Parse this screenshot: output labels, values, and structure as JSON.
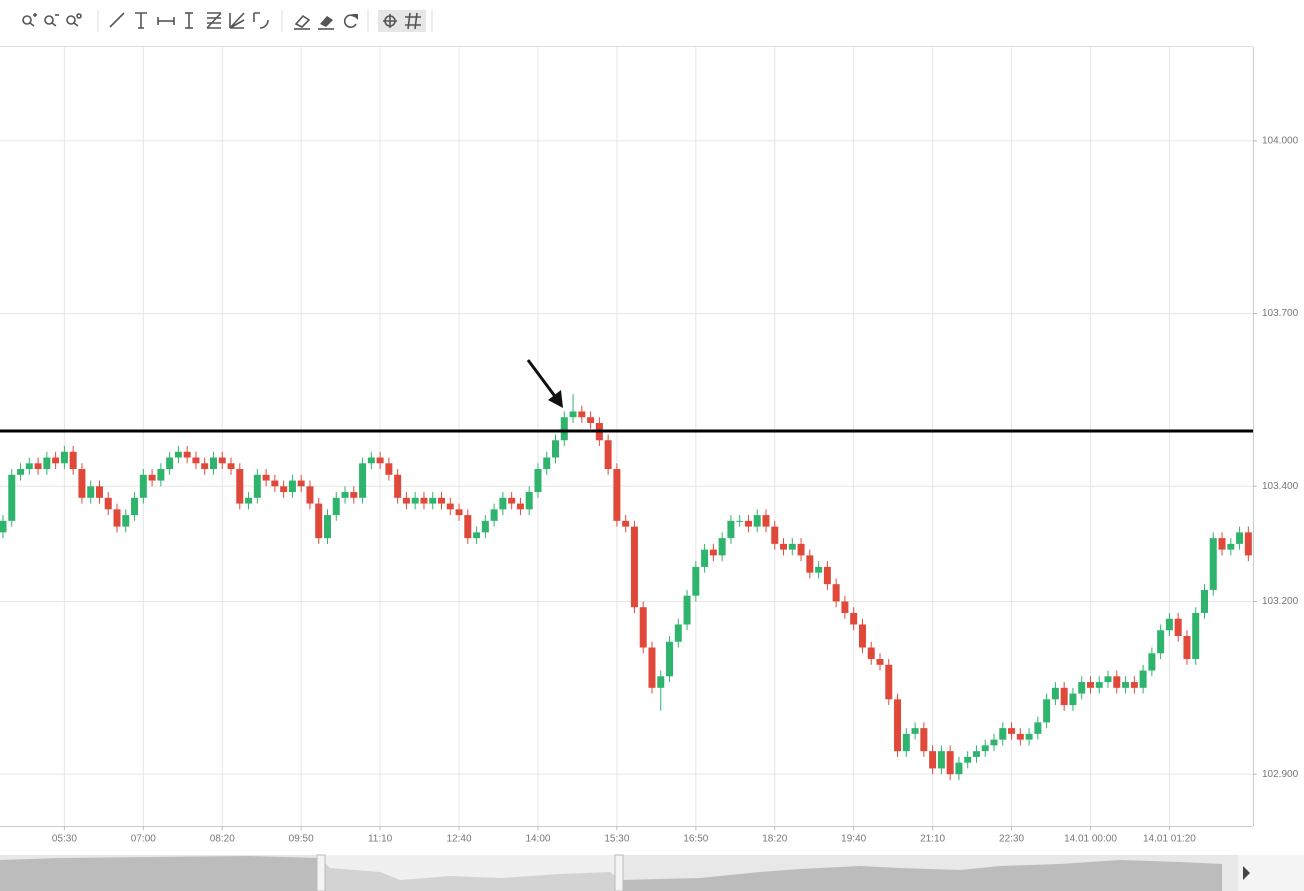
{
  "chart_data": {
    "type": "candlestick",
    "categories": [
      null,
      null,
      null,
      null,
      null,
      null,
      null,
      "05:30",
      null,
      null,
      null,
      null,
      null,
      null,
      null,
      null,
      "07:00",
      null,
      null,
      null,
      null,
      null,
      null,
      null,
      null,
      "08:20",
      null,
      null,
      null,
      null,
      null,
      null,
      null,
      null,
      "09:50",
      null,
      null,
      null,
      null,
      null,
      null,
      null,
      null,
      "11:10",
      null,
      null,
      null,
      null,
      null,
      null,
      null,
      null,
      "12:40",
      null,
      null,
      null,
      null,
      null,
      null,
      null,
      null,
      "14:00",
      null,
      null,
      null,
      null,
      null,
      null,
      null,
      null,
      "15:30",
      null,
      null,
      null,
      null,
      null,
      null,
      null,
      null,
      "16:50",
      null,
      null,
      null,
      null,
      null,
      null,
      null,
      null,
      "18:20",
      null,
      null,
      null,
      null,
      null,
      null,
      null,
      null,
      "19:40",
      null,
      null,
      null,
      null,
      null,
      null,
      null,
      null,
      "21:10",
      null,
      null,
      null,
      null,
      null,
      null,
      null,
      null,
      "22:30",
      null,
      null,
      null,
      null,
      null,
      null,
      null,
      null,
      "14.01 00:00",
      null,
      null,
      null,
      null,
      null,
      null,
      null,
      null,
      "14.01 01:20",
      null,
      null,
      null,
      null,
      null,
      null,
      null,
      null,
      null
    ],
    "open": [
      103.32,
      103.34,
      103.42,
      103.43,
      103.44,
      103.43,
      103.45,
      103.44,
      103.46,
      103.43,
      103.38,
      103.4,
      103.38,
      103.36,
      103.33,
      103.35,
      103.38,
      103.42,
      103.41,
      103.43,
      103.45,
      103.46,
      103.45,
      103.44,
      103.43,
      103.45,
      103.44,
      103.43,
      103.37,
      103.38,
      103.42,
      103.41,
      103.4,
      103.39,
      103.41,
      103.4,
      103.37,
      103.31,
      103.35,
      103.38,
      103.39,
      103.38,
      103.44,
      103.45,
      103.44,
      103.42,
      103.38,
      103.37,
      103.38,
      103.37,
      103.38,
      103.37,
      103.36,
      103.35,
      103.31,
      103.32,
      103.34,
      103.36,
      103.38,
      103.37,
      103.36,
      103.39,
      103.43,
      103.45,
      103.48,
      103.52,
      103.53,
      103.52,
      103.51,
      103.48,
      103.43,
      103.34,
      103.33,
      103.19,
      103.12,
      103.05,
      103.07,
      103.13,
      103.16,
      103.21,
      103.26,
      103.29,
      103.28,
      103.31,
      103.34,
      103.34,
      103.33,
      103.35,
      103.33,
      103.3,
      103.29,
      103.3,
      103.28,
      103.25,
      103.26,
      103.23,
      103.2,
      103.18,
      103.16,
      103.12,
      103.1,
      103.09,
      103.03,
      102.94,
      102.97,
      102.98,
      102.94,
      102.91,
      102.94,
      102.9,
      102.92,
      102.93,
      102.94,
      102.95,
      102.96,
      102.98,
      102.97,
      102.96,
      102.97,
      102.99,
      103.03,
      103.05,
      103.02,
      103.04,
      103.06,
      103.05,
      103.06,
      103.07,
      103.05,
      103.06,
      103.05,
      103.08,
      103.11,
      103.15,
      103.17,
      103.14,
      103.1,
      103.18,
      103.22,
      103.31,
      103.29,
      103.3,
      103.32
    ],
    "high": [
      103.35,
      103.43,
      103.44,
      103.45,
      103.45,
      103.46,
      103.46,
      103.47,
      103.47,
      103.44,
      103.41,
      103.41,
      103.39,
      103.37,
      103.36,
      103.39,
      103.43,
      103.43,
      103.44,
      103.46,
      103.47,
      103.47,
      103.46,
      103.45,
      103.46,
      103.46,
      103.45,
      103.44,
      103.39,
      103.43,
      103.43,
      103.42,
      103.41,
      103.42,
      103.42,
      103.41,
      103.38,
      103.36,
      103.39,
      103.4,
      103.4,
      103.45,
      103.46,
      103.46,
      103.45,
      103.43,
      103.39,
      103.39,
      103.39,
      103.39,
      103.39,
      103.38,
      103.37,
      103.36,
      103.33,
      103.35,
      103.37,
      103.39,
      103.39,
      103.38,
      103.4,
      103.44,
      103.46,
      103.49,
      103.53,
      103.56,
      103.54,
      103.53,
      103.52,
      103.49,
      103.44,
      103.35,
      103.34,
      103.2,
      103.13,
      103.08,
      103.14,
      103.17,
      103.22,
      103.27,
      103.3,
      103.3,
      103.32,
      103.35,
      103.35,
      103.35,
      103.36,
      103.36,
      103.34,
      103.31,
      103.31,
      103.31,
      103.29,
      103.27,
      103.27,
      103.24,
      103.21,
      103.19,
      103.17,
      103.13,
      103.11,
      103.1,
      103.04,
      102.98,
      102.99,
      102.99,
      102.95,
      102.95,
      102.95,
      102.93,
      102.94,
      102.95,
      102.96,
      102.97,
      102.99,
      102.99,
      102.98,
      102.98,
      103.0,
      103.04,
      103.06,
      103.06,
      103.05,
      103.07,
      103.07,
      103.07,
      103.08,
      103.08,
      103.07,
      103.07,
      103.09,
      103.12,
      103.16,
      103.18,
      103.18,
      103.15,
      103.19,
      103.23,
      103.32,
      103.32,
      103.31,
      103.33,
      103.33
    ],
    "low": [
      103.31,
      103.33,
      103.41,
      103.42,
      103.42,
      103.42,
      103.43,
      103.43,
      103.42,
      103.37,
      103.37,
      103.37,
      103.35,
      103.32,
      103.32,
      103.34,
      103.37,
      103.4,
      103.4,
      103.42,
      103.44,
      103.44,
      103.43,
      103.42,
      103.42,
      103.43,
      103.42,
      103.36,
      103.36,
      103.37,
      103.4,
      103.39,
      103.38,
      103.38,
      103.39,
      103.36,
      103.3,
      103.3,
      103.34,
      103.37,
      103.37,
      103.37,
      103.43,
      103.43,
      103.41,
      103.37,
      103.36,
      103.36,
      103.36,
      103.36,
      103.36,
      103.35,
      103.34,
      103.3,
      103.3,
      103.31,
      103.33,
      103.35,
      103.36,
      103.35,
      103.35,
      103.38,
      103.42,
      103.44,
      103.47,
      103.51,
      103.51,
      103.5,
      103.47,
      103.42,
      103.33,
      103.32,
      103.18,
      103.11,
      103.04,
      103.01,
      103.06,
      103.12,
      103.15,
      103.2,
      103.25,
      103.27,
      103.27,
      103.3,
      103.33,
      103.32,
      103.32,
      103.32,
      103.29,
      103.28,
      103.28,
      103.27,
      103.24,
      103.24,
      103.22,
      103.19,
      103.17,
      103.15,
      103.11,
      103.09,
      103.08,
      103.02,
      102.93,
      102.93,
      102.96,
      102.93,
      102.9,
      102.9,
      102.89,
      102.89,
      102.91,
      102.92,
      102.93,
      102.94,
      102.95,
      102.96,
      102.95,
      102.95,
      102.96,
      102.98,
      103.02,
      103.01,
      103.01,
      103.03,
      103.04,
      103.04,
      103.05,
      103.04,
      103.04,
      103.04,
      103.04,
      103.07,
      103.1,
      103.14,
      103.13,
      103.09,
      103.09,
      103.17,
      103.21,
      103.28,
      103.28,
      103.29,
      103.27
    ],
    "close": [
      103.34,
      103.42,
      103.43,
      103.44,
      103.43,
      103.45,
      103.44,
      103.46,
      103.43,
      103.38,
      103.4,
      103.38,
      103.36,
      103.33,
      103.35,
      103.38,
      103.42,
      103.41,
      103.43,
      103.45,
      103.46,
      103.45,
      103.44,
      103.43,
      103.45,
      103.44,
      103.43,
      103.37,
      103.38,
      103.42,
      103.41,
      103.4,
      103.39,
      103.41,
      103.4,
      103.37,
      103.31,
      103.35,
      103.38,
      103.39,
      103.38,
      103.44,
      103.45,
      103.44,
      103.42,
      103.38,
      103.37,
      103.38,
      103.37,
      103.38,
      103.37,
      103.36,
      103.35,
      103.31,
      103.32,
      103.34,
      103.36,
      103.38,
      103.37,
      103.36,
      103.39,
      103.43,
      103.45,
      103.48,
      103.52,
      103.53,
      103.52,
      103.51,
      103.48,
      103.43,
      103.34,
      103.33,
      103.19,
      103.12,
      103.05,
      103.07,
      103.13,
      103.16,
      103.21,
      103.26,
      103.29,
      103.28,
      103.31,
      103.34,
      103.34,
      103.33,
      103.35,
      103.33,
      103.3,
      103.29,
      103.3,
      103.28,
      103.25,
      103.26,
      103.23,
      103.2,
      103.18,
      103.16,
      103.12,
      103.1,
      103.09,
      103.03,
      102.94,
      102.97,
      102.98,
      102.94,
      102.91,
      102.94,
      102.9,
      102.92,
      102.93,
      102.94,
      102.95,
      102.96,
      102.98,
      102.97,
      102.96,
      102.97,
      102.99,
      103.03,
      103.05,
      103.02,
      103.04,
      103.06,
      103.05,
      103.06,
      103.07,
      103.05,
      103.06,
      103.05,
      103.08,
      103.11,
      103.15,
      103.17,
      103.14,
      103.1,
      103.18,
      103.22,
      103.31,
      103.29,
      103.3,
      103.32,
      103.28
    ],
    "up_color": "#2fb46e",
    "down_color": "#e0483a",
    "ylim": [
      102.81,
      104.163
    ],
    "yticks": [
      {
        "value": 104,
        "label": "104.000"
      },
      {
        "value": 103.7,
        "label": "103.700"
      },
      {
        "value": 103.4,
        "label": "103.400"
      },
      {
        "value": 103.2,
        "label": "103.200"
      },
      {
        "value": 102.9,
        "label": "102.900"
      }
    ],
    "hline": 103.496,
    "grid": true
  }
}
